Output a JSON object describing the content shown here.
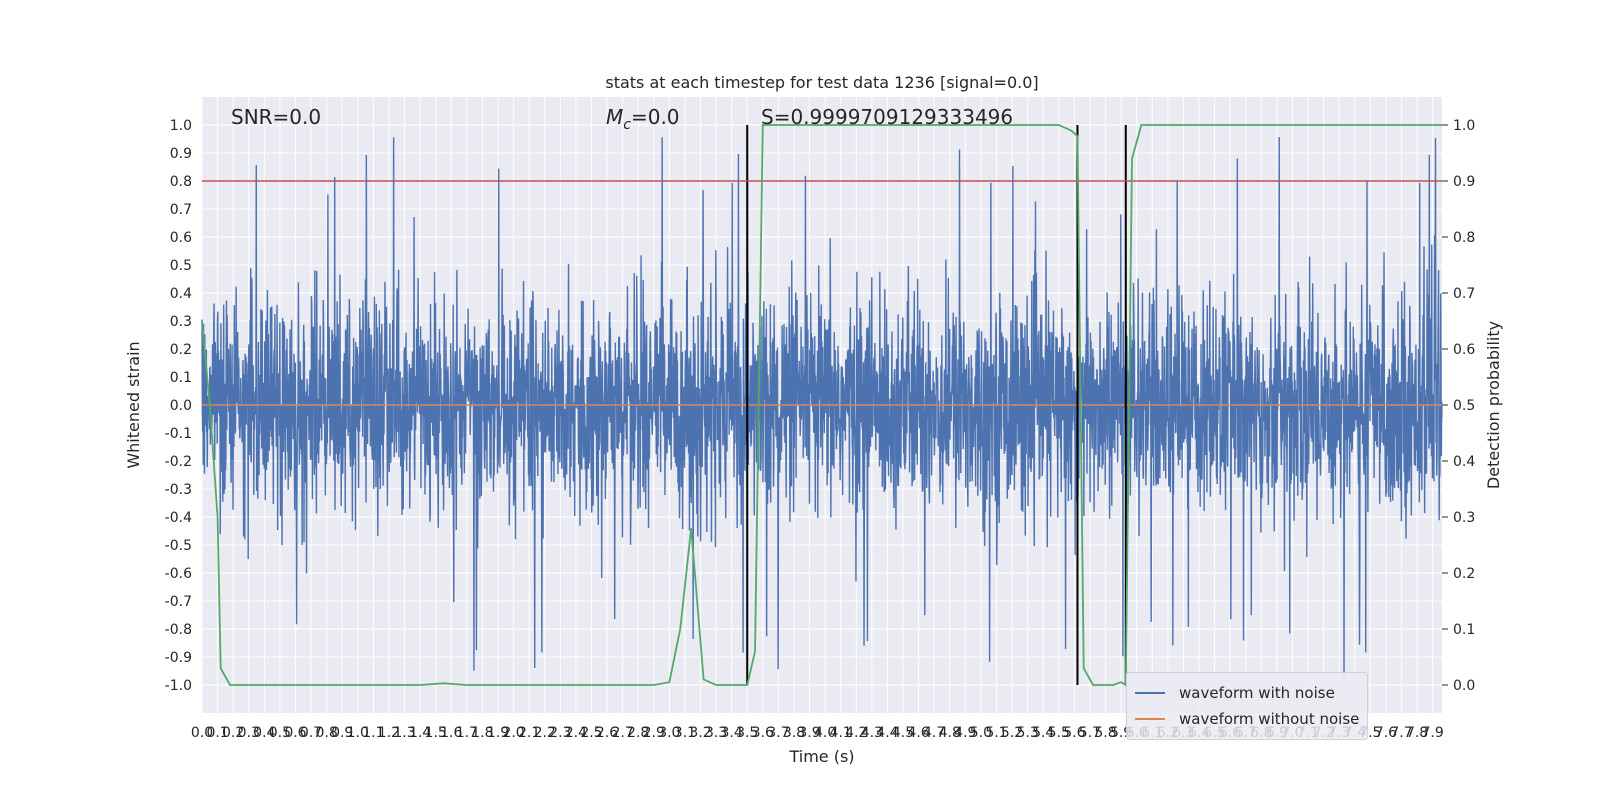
{
  "chart_data": {
    "type": "line",
    "title": "stats at each timestep for test data 1236 [signal=0.0]",
    "xlabel": "Time (s)",
    "ylabel": "Whitened strain",
    "ylabel_right": "Detection probability",
    "xlim": [
      0.0,
      7.96
    ],
    "ylim": [
      -1.1,
      1.1
    ],
    "ylim_right": [
      -0.05,
      1.05
    ],
    "x_ticks": [
      0.0,
      0.1,
      0.2,
      0.3,
      0.4,
      0.5,
      0.6,
      0.7,
      0.8,
      0.9,
      1.0,
      1.1,
      1.2,
      1.3,
      1.4,
      1.5,
      1.6,
      1.7,
      1.8,
      1.9,
      2.0,
      2.1,
      2.2,
      2.3,
      2.4,
      2.5,
      2.6,
      2.7,
      2.8,
      2.9,
      3.0,
      3.1,
      3.2,
      3.3,
      3.4,
      3.5,
      3.6,
      3.7,
      3.8,
      3.9,
      4.0,
      4.1,
      4.2,
      4.3,
      4.4,
      4.5,
      4.6,
      4.7,
      4.8,
      4.9,
      5.0,
      5.1,
      5.2,
      5.3,
      5.4,
      5.5,
      5.6,
      5.7,
      5.8,
      5.9,
      6.0,
      6.1,
      6.2,
      6.3,
      6.4,
      6.5,
      6.6,
      6.7,
      6.8,
      6.9,
      7.0,
      7.1,
      7.2,
      7.3,
      7.4,
      7.5,
      7.6,
      7.7,
      7.8,
      7.9
    ],
    "x_tick_labels": [
      "0.0",
      "0.1",
      "0.2",
      "0.3",
      "0.4",
      "0.5",
      "0.6",
      "0.7",
      "0.8",
      "0.9",
      "1.0",
      "1.1",
      "1.2",
      "1.3",
      "1.4",
      "1.5",
      "1.6",
      "1.7",
      "1.8",
      "1.9",
      "2.0",
      "2.1",
      "2.2",
      "2.3",
      "2.4",
      "2.5",
      "2.6",
      "2.7",
      "2.8",
      "2.9",
      "3.0",
      "3.1",
      "3.2",
      "3.3",
      "3.4",
      "3.5",
      "3.6",
      "3.7",
      "3.8",
      "3.9",
      "4.0",
      "4.1",
      "4.2",
      "4.3",
      "4.4",
      "4.5",
      "4.6",
      "4.7",
      "4.8",
      "4.9",
      "5.0",
      "5.1",
      "5.2",
      "5.3",
      "5.4",
      "5.5",
      "5.6",
      "5.7",
      "5.8",
      "5.9",
      "6.0",
      "6.1",
      "6.2",
      "6.3",
      "6.4",
      "6.5",
      "6.6",
      "6.7",
      "6.8",
      "6.9",
      "7.0",
      "7.1",
      "7.2",
      "7.3",
      "7.4",
      "7.5",
      "7.6",
      "7.7",
      "7.8",
      "7.9"
    ],
    "y_ticks": [
      1.0,
      0.9,
      0.8,
      0.7,
      0.6,
      0.5,
      0.4,
      0.3,
      0.2,
      0.1,
      0.0,
      -0.1,
      -0.2,
      -0.3,
      -0.4,
      -0.5,
      -0.6,
      -0.7,
      -0.8,
      -0.9,
      -1.0
    ],
    "y_tick_labels": [
      "1.0",
      "0.9",
      "0.8",
      "0.7",
      "0.6",
      "0.5",
      "0.4",
      "0.3",
      "0.2",
      "0.1",
      "0.0",
      "-0.1",
      "-0.2",
      "-0.3",
      "-0.4",
      "-0.5",
      "-0.6",
      "-0.7",
      "-0.8",
      "-0.9",
      "-1.0"
    ],
    "y_right_ticks": [
      1.0,
      0.9,
      0.8,
      0.7,
      0.6,
      0.5,
      0.4,
      0.3,
      0.2,
      0.1,
      0.0
    ],
    "y_right_tick_labels": [
      "1.0",
      "0.9",
      "0.8",
      "0.7",
      "0.6",
      "0.5",
      "0.4",
      "0.3",
      "0.2",
      "0.1",
      "0.0"
    ],
    "grid": true,
    "annotations": [
      {
        "text": "SNR=0.0"
      },
      {
        "text": "M_c=0.0",
        "symbol": "M",
        "subscript": "c",
        "suffix": "=0.0"
      },
      {
        "text": "S=0.9999709129333496"
      }
    ],
    "threshold": {
      "value": 0.9,
      "axis": "right",
      "color": "#c44e52"
    },
    "vertical_markers": [
      3.5,
      5.62,
      5.93
    ],
    "colors": {
      "noise": "#4c72b0",
      "clean": "#dd8452",
      "probability": "#55a868",
      "threshold": "#c44e52",
      "marker": "#000000"
    },
    "series": [
      {
        "name": "waveform with noise",
        "description": "dense whitened strain noise, amplitude mostly within ±0.5, peaks near ±1.0"
      },
      {
        "name": "waveform without noise",
        "values_constant": 0.0
      }
    ],
    "probability_series": {
      "x": [
        0.0,
        0.05,
        0.1,
        0.12,
        0.18,
        0.3,
        1.4,
        1.55,
        1.7,
        2.8,
        2.9,
        3.0,
        3.07,
        3.14,
        3.22,
        3.3,
        3.45,
        3.5,
        3.55,
        3.6,
        3.8,
        5.5,
        5.58,
        5.62,
        5.66,
        5.72,
        5.78,
        5.85,
        5.9,
        5.93,
        5.97,
        6.03,
        6.08,
        7.96
      ],
      "values": [
        0.65,
        0.5,
        0.3,
        0.03,
        0.0,
        0.0,
        0.0,
        0.003,
        0.0,
        0.0,
        0.0,
        0.005,
        0.1,
        0.28,
        0.01,
        0.0,
        0.0,
        0.0,
        0.06,
        1.0,
        1.0,
        1.0,
        0.99,
        0.98,
        0.03,
        0.0,
        0.0,
        0.0,
        0.005,
        0.0,
        0.94,
        1.0,
        1.0,
        1.0
      ]
    },
    "legend": {
      "placement": "lower-right",
      "entries": [
        "waveform with noise",
        "waveform without noise"
      ]
    }
  }
}
